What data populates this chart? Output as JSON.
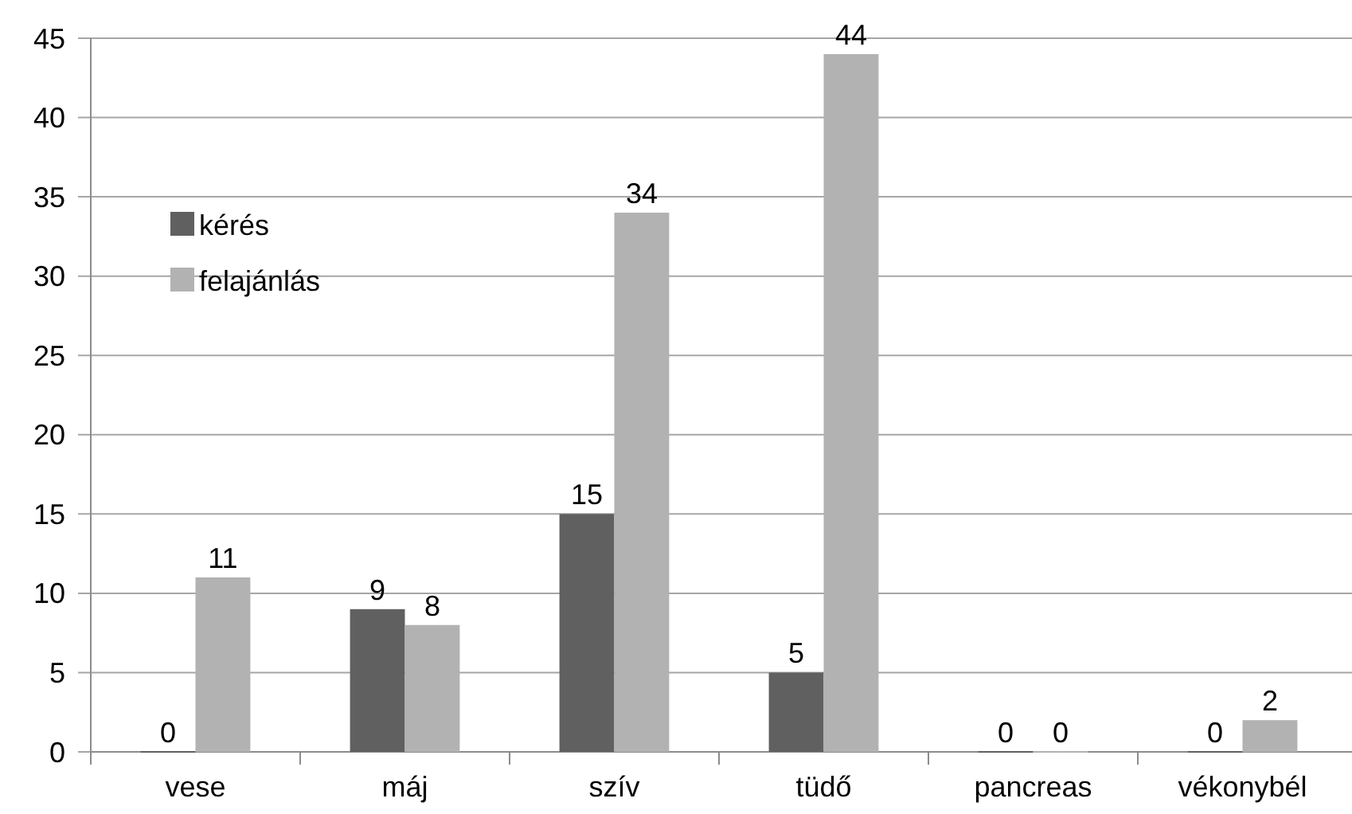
{
  "chart_data": {
    "type": "bar",
    "categories": [
      "vese",
      "máj",
      "szív",
      "tüdő",
      "pancreas",
      "vékonybél"
    ],
    "series": [
      {
        "name": "kérés",
        "color": "#606060",
        "values": [
          0,
          9,
          15,
          5,
          0,
          0
        ]
      },
      {
        "name": "felajánlás",
        "color": "#b2b2b2",
        "values": [
          11,
          8,
          34,
          44,
          0,
          2
        ]
      }
    ],
    "ylim": [
      0,
      45
    ],
    "yticks": [
      0,
      5,
      10,
      15,
      20,
      25,
      30,
      35,
      40,
      45
    ],
    "grid": "y",
    "legend": "top left",
    "data_labels": true
  }
}
